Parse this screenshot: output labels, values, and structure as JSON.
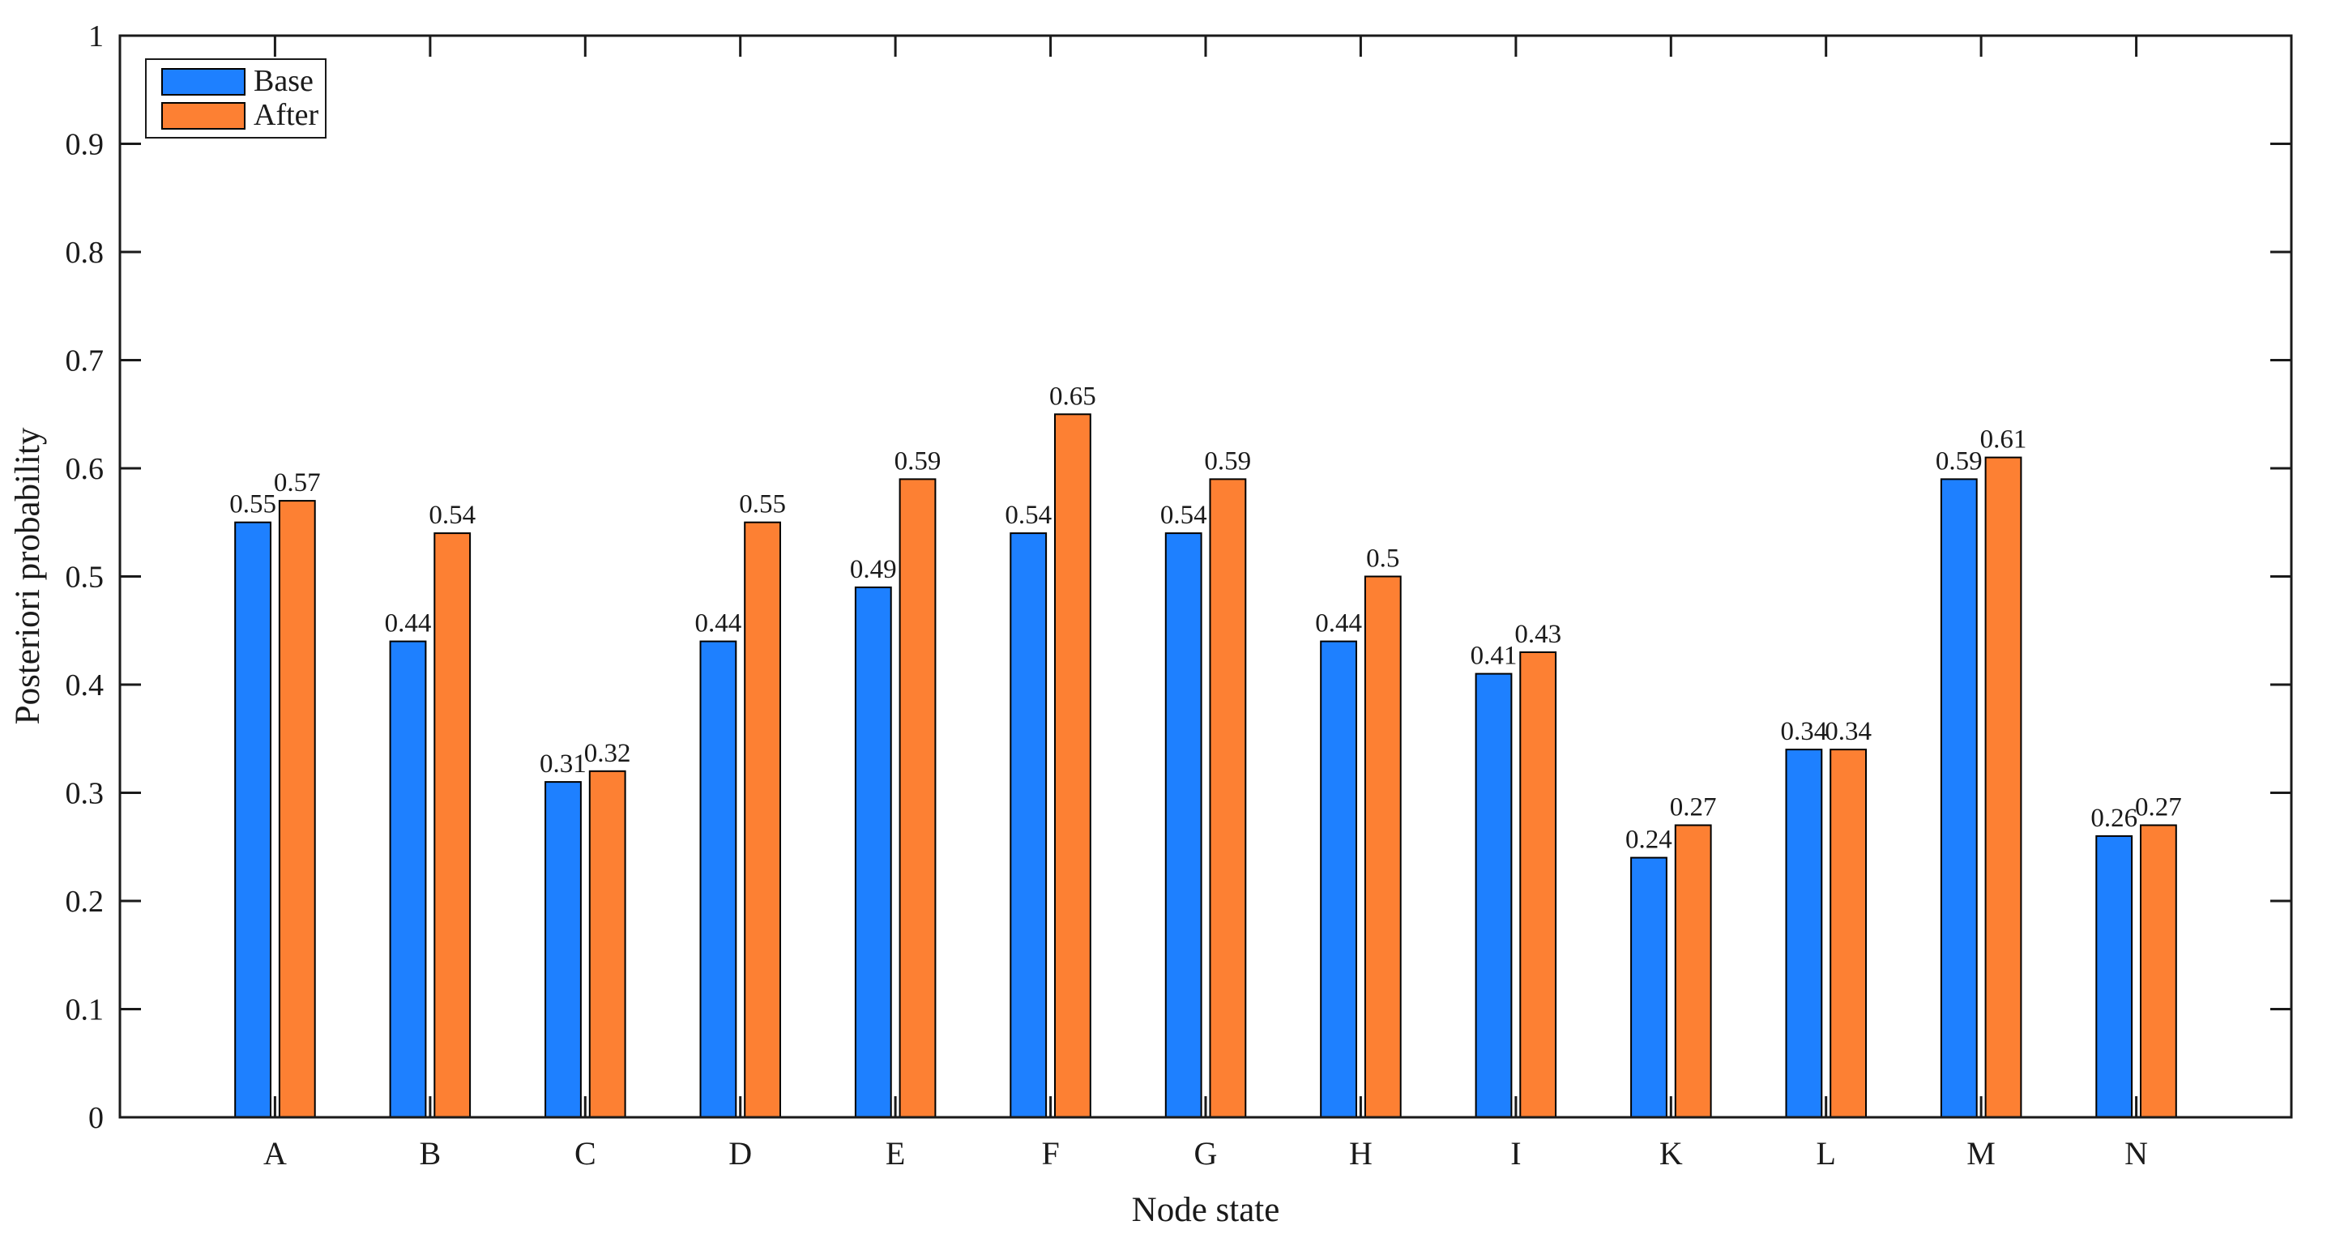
{
  "figure": {
    "background": "#ffffff",
    "frame_color": "#1a1a1a",
    "bar_edge_color": "#000000",
    "label_color": "#000000"
  },
  "chart_data": {
    "type": "bar",
    "layout": "grouped",
    "title": "",
    "xlabel": "Node state",
    "ylabel": "Posteriori probability",
    "categories": [
      "A",
      "B",
      "C",
      "D",
      "E",
      "F",
      "G",
      "H",
      "I",
      "K",
      "L",
      "M",
      "N"
    ],
    "series": [
      {
        "name": "Base",
        "color": "#1E80FF",
        "values": [
          0.55,
          0.44,
          0.31,
          0.44,
          0.49,
          0.54,
          0.54,
          0.44,
          0.41,
          0.24,
          0.34,
          0.59,
          0.26
        ]
      },
      {
        "name": "After",
        "color": "#FD8033",
        "values": [
          0.57,
          0.54,
          0.32,
          0.55,
          0.59,
          0.65,
          0.59,
          0.5,
          0.43,
          0.27,
          0.34,
          0.61,
          0.27
        ]
      }
    ],
    "bar_value_labels_shown": true,
    "ylim": [
      0,
      1
    ],
    "yticks": [
      0,
      0.1,
      0.2,
      0.3,
      0.4,
      0.5,
      0.6,
      0.7,
      0.8,
      0.9,
      1
    ],
    "grid": false,
    "box": true,
    "tick_direction": "in",
    "legend": {
      "position": "top-left-inside",
      "entries": [
        "Base",
        "After"
      ]
    }
  }
}
